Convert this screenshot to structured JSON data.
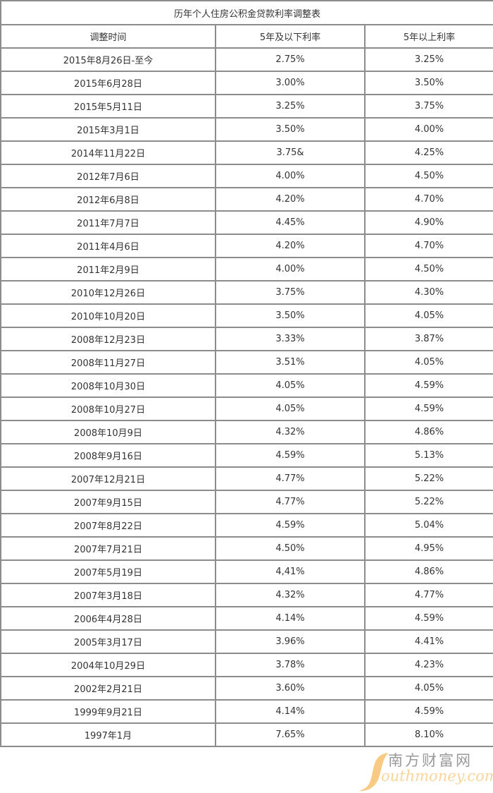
{
  "table": {
    "title": "历年个人住房公积金贷款利率调整表",
    "headers": [
      "调整时间",
      "5年及以下利率",
      "5年以上利率"
    ],
    "rows": [
      [
        "2015年8月26日-至今",
        "2.75%",
        "3.25%"
      ],
      [
        "2015年6月28日",
        "3.00%",
        "3.50%"
      ],
      [
        "2015年5月11日",
        "3.25%",
        "3.75%"
      ],
      [
        "2015年3月1日",
        "3.50%",
        "4.00%"
      ],
      [
        "2014年11月22日",
        "3.75&",
        "4.25%"
      ],
      [
        "2012年7月6日",
        "4.00%",
        "4.50%"
      ],
      [
        "2012年6月8日",
        "4.20%",
        "4.70%"
      ],
      [
        "2011年7月7日",
        "4.45%",
        "4.90%"
      ],
      [
        "2011年4月6日",
        "4.20%",
        "4.70%"
      ],
      [
        "2011年2月9日",
        "4.00%",
        "4.50%"
      ],
      [
        "2010年12月26日",
        "3.75%",
        "4.30%"
      ],
      [
        "2010年10月20日",
        "3.50%",
        "4.05%"
      ],
      [
        "2008年12月23日",
        "3.33%",
        "3.87%"
      ],
      [
        "2008年11月27日",
        "3.51%",
        "4.05%"
      ],
      [
        "2008年10月30日",
        "4.05%",
        "4.59%"
      ],
      [
        "2008年10月27日",
        "4.05%",
        "4.59%"
      ],
      [
        "2008年10月9日",
        "4.32%",
        "4.86%"
      ],
      [
        "2008年9月16日",
        "4.59%",
        "5.13%"
      ],
      [
        "2007年12月21日",
        "4.77%",
        "5.22%"
      ],
      [
        "2007年9月15日",
        "4.77%",
        "5.22%"
      ],
      [
        "2007年8月22日",
        "4.59%",
        "5.04%"
      ],
      [
        "2007年7月21日",
        "4.50%",
        "4.95%"
      ],
      [
        "2007年5月19日",
        "4,41%",
        "4.86%"
      ],
      [
        "2007年3月18日",
        "4.32%",
        "4.77%"
      ],
      [
        "2006年4月28日",
        "4.14%",
        "4.59%"
      ],
      [
        "2005年3月17日",
        "3.96%",
        "4.41%"
      ],
      [
        "2004年10月29日",
        "3.78%",
        "4.23%"
      ],
      [
        "2002年2月21日",
        "3.60%",
        "4.05%"
      ],
      [
        "1999年9月21日",
        "4.14%",
        "4.59%"
      ],
      [
        "1997年1月",
        "7.65%",
        "8.10%"
      ]
    ]
  },
  "watermark": {
    "cn": "南方财富网",
    "en": "outhmoney.com"
  },
  "colors": {
    "border": "#8c8c8c",
    "watermark_orange": "#f5be64"
  }
}
